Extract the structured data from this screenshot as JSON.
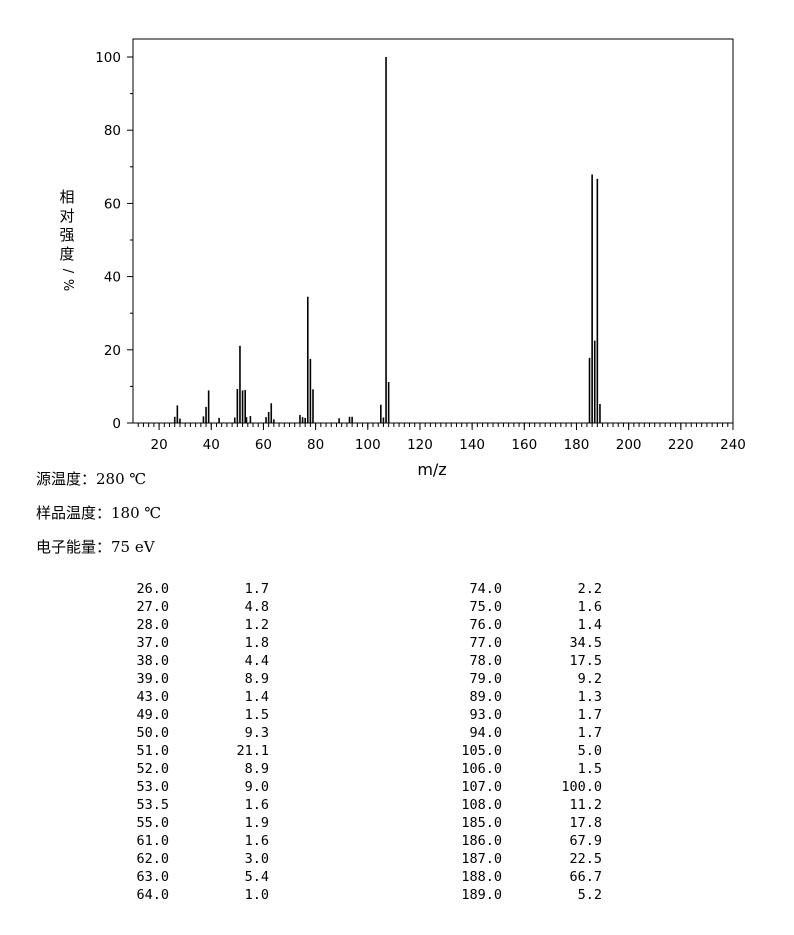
{
  "chart_data": {
    "type": "bar",
    "xlabel": "m/z",
    "ylabel": "相对强度/%",
    "xlim": [
      10,
      240
    ],
    "ylim": [
      0,
      100
    ],
    "x_ticks": [
      20,
      40,
      60,
      80,
      100,
      120,
      140,
      160,
      180,
      200,
      220,
      240
    ],
    "y_ticks": [
      0,
      20,
      40,
      60,
      80,
      100
    ],
    "peaks": [
      {
        "x": 26.0,
        "y": 1.7
      },
      {
        "x": 27.0,
        "y": 4.8
      },
      {
        "x": 28.0,
        "y": 1.2
      },
      {
        "x": 37.0,
        "y": 1.8
      },
      {
        "x": 38.0,
        "y": 4.4
      },
      {
        "x": 39.0,
        "y": 8.9
      },
      {
        "x": 43.0,
        "y": 1.4
      },
      {
        "x": 49.0,
        "y": 1.5
      },
      {
        "x": 50.0,
        "y": 9.3
      },
      {
        "x": 51.0,
        "y": 21.1
      },
      {
        "x": 52.0,
        "y": 8.9
      },
      {
        "x": 53.0,
        "y": 9.0
      },
      {
        "x": 53.5,
        "y": 1.6
      },
      {
        "x": 55.0,
        "y": 1.9
      },
      {
        "x": 61.0,
        "y": 1.6
      },
      {
        "x": 62.0,
        "y": 3.0
      },
      {
        "x": 63.0,
        "y": 5.4
      },
      {
        "x": 64.0,
        "y": 1.0
      },
      {
        "x": 74.0,
        "y": 2.2
      },
      {
        "x": 75.0,
        "y": 1.6
      },
      {
        "x": 76.0,
        "y": 1.4
      },
      {
        "x": 77.0,
        "y": 34.5
      },
      {
        "x": 78.0,
        "y": 17.5
      },
      {
        "x": 79.0,
        "y": 9.2
      },
      {
        "x": 89.0,
        "y": 1.3
      },
      {
        "x": 93.0,
        "y": 1.7
      },
      {
        "x": 94.0,
        "y": 1.7
      },
      {
        "x": 105.0,
        "y": 5.0
      },
      {
        "x": 106.0,
        "y": 1.5
      },
      {
        "x": 107.0,
        "y": 100.0
      },
      {
        "x": 108.0,
        "y": 11.2
      },
      {
        "x": 185.0,
        "y": 17.8
      },
      {
        "x": 186.0,
        "y": 67.9
      },
      {
        "x": 187.0,
        "y": 22.5
      },
      {
        "x": 188.0,
        "y": 66.7
      },
      {
        "x": 189.0,
        "y": 5.2
      }
    ]
  },
  "conditions": {
    "source_temp": "源温度：280 ℃",
    "sample_temp": "样品温度：180 ℃",
    "electron_energy": "电子能量：75 eV"
  },
  "peak_table": {
    "left": [
      [
        "26.0",
        "1.7"
      ],
      [
        "27.0",
        "4.8"
      ],
      [
        "28.0",
        "1.2"
      ],
      [
        "37.0",
        "1.8"
      ],
      [
        "38.0",
        "4.4"
      ],
      [
        "39.0",
        "8.9"
      ],
      [
        "43.0",
        "1.4"
      ],
      [
        "49.0",
        "1.5"
      ],
      [
        "50.0",
        "9.3"
      ],
      [
        "51.0",
        "21.1"
      ],
      [
        "52.0",
        "8.9"
      ],
      [
        "53.0",
        "9.0"
      ],
      [
        "53.5",
        "1.6"
      ],
      [
        "55.0",
        "1.9"
      ],
      [
        "61.0",
        "1.6"
      ],
      [
        "62.0",
        "3.0"
      ],
      [
        "63.0",
        "5.4"
      ],
      [
        "64.0",
        "1.0"
      ]
    ],
    "right": [
      [
        "74.0",
        "2.2"
      ],
      [
        "75.0",
        "1.6"
      ],
      [
        "76.0",
        "1.4"
      ],
      [
        "77.0",
        "34.5"
      ],
      [
        "78.0",
        "17.5"
      ],
      [
        "79.0",
        "9.2"
      ],
      [
        "89.0",
        "1.3"
      ],
      [
        "93.0",
        "1.7"
      ],
      [
        "94.0",
        "1.7"
      ],
      [
        "105.0",
        "5.0"
      ],
      [
        "106.0",
        "1.5"
      ],
      [
        "107.0",
        "100.0"
      ],
      [
        "108.0",
        "11.2"
      ],
      [
        "185.0",
        "17.8"
      ],
      [
        "186.0",
        "67.9"
      ],
      [
        "187.0",
        "22.5"
      ],
      [
        "188.0",
        "66.7"
      ],
      [
        "189.0",
        "5.2"
      ]
    ]
  }
}
